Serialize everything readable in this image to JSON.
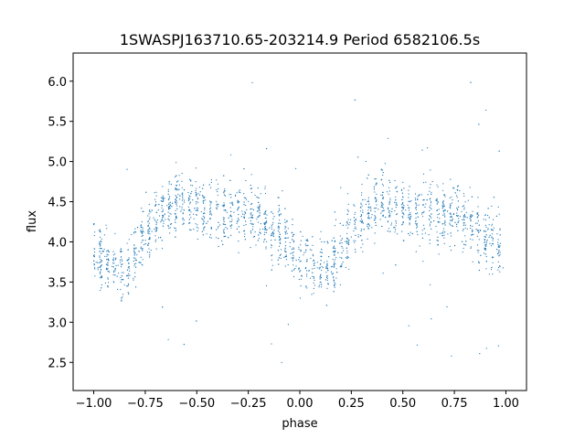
{
  "chart_data": {
    "type": "scatter",
    "title": "1SWASPJ163710.65-203214.9 Period 6582106.5s",
    "xlabel": "phase",
    "ylabel": "flux",
    "xlim": [
      -1.1,
      1.1
    ],
    "ylim": [
      2.15,
      6.35
    ],
    "xticks": [
      -1.0,
      -0.75,
      -0.5,
      -0.25,
      0.0,
      0.25,
      0.5,
      0.75,
      1.0
    ],
    "xtick_labels": [
      "−1.00",
      "−0.75",
      "−0.50",
      "−0.25",
      "0.00",
      "0.25",
      "0.50",
      "0.75",
      "1.00"
    ],
    "yticks": [
      2.5,
      3.0,
      3.5,
      4.0,
      4.5,
      5.0,
      5.5,
      6.0
    ],
    "ytick_labels": [
      "2.5",
      "3.0",
      "3.5",
      "4.0",
      "4.5",
      "5.0",
      "5.5",
      "6.0"
    ],
    "grid": false,
    "marker_color": "#1f77b4",
    "series": [
      {
        "phase": [
          -1.0,
          -0.95,
          -0.9,
          -0.85,
          -0.8,
          -0.75,
          -0.7,
          -0.65,
          -0.6,
          -0.55,
          -0.5,
          -0.45,
          -0.4,
          -0.35,
          -0.3,
          -0.25,
          -0.2,
          -0.15,
          -0.1,
          -0.05,
          0.0,
          0.05,
          0.1,
          0.15,
          0.2,
          0.25,
          0.3,
          0.35,
          0.4,
          0.45,
          0.5,
          0.55,
          0.6,
          0.65,
          0.7,
          0.75,
          0.8,
          0.85,
          0.9,
          0.95,
          1.0
        ],
        "flux": [
          3.8,
          3.75,
          3.7,
          3.65,
          3.85,
          4.15,
          4.3,
          4.4,
          4.5,
          4.45,
          4.4,
          4.35,
          4.4,
          4.35,
          4.3,
          4.4,
          4.3,
          4.2,
          4.1,
          4.0,
          3.8,
          3.75,
          3.7,
          3.65,
          3.85,
          4.15,
          4.3,
          4.4,
          4.5,
          4.45,
          4.4,
          4.35,
          4.4,
          4.35,
          4.3,
          4.4,
          4.3,
          4.2,
          4.1,
          4.0,
          3.8
        ]
      }
    ]
  }
}
